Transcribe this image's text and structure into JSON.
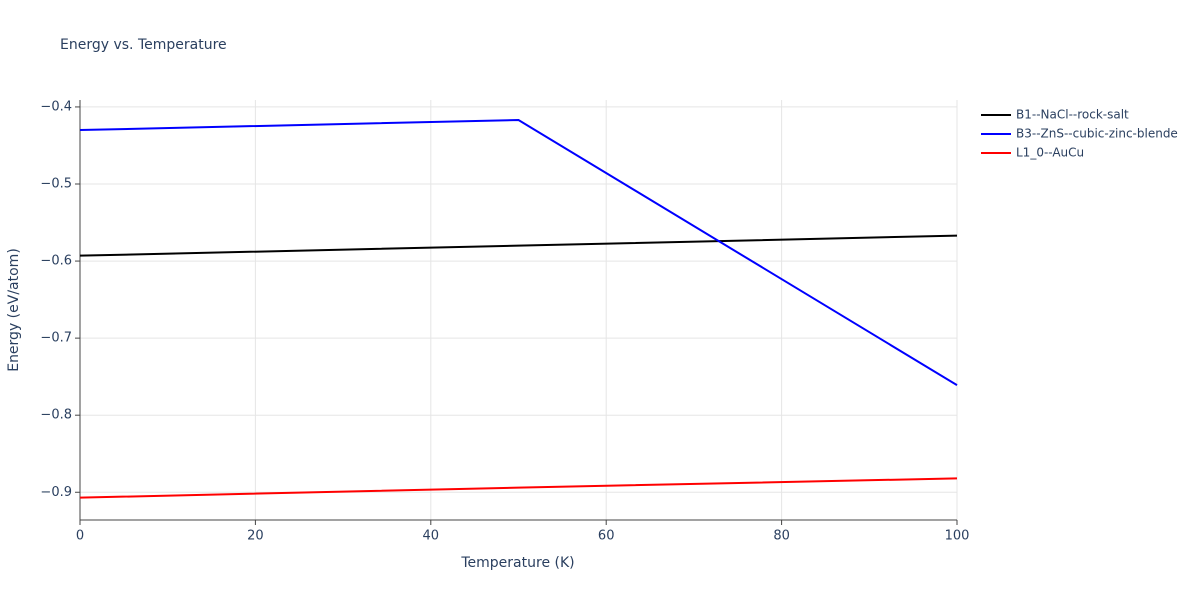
{
  "chart_data": {
    "type": "line",
    "title": "Energy vs. Temperature",
    "x_label": "Temperature (K)",
    "y_label": "Energy (eV/atom)",
    "x": [
      0,
      50,
      100
    ],
    "series": [
      {
        "name": "B1--NaCl--rock-salt",
        "color": "#000000",
        "values": [
          -0.593,
          -0.58,
          -0.567
        ]
      },
      {
        "name": "B3--ZnS--cubic-zinc-blende",
        "color": "#0000ff",
        "values": [
          -0.43,
          -0.417,
          -0.761
        ]
      },
      {
        "name": "L1_0--AuCu",
        "color": "#ff0000",
        "values": [
          -0.907,
          -0.894,
          -0.882
        ]
      }
    ],
    "xlim": [
      0,
      100
    ],
    "xticks": [
      0,
      20,
      40,
      60,
      80,
      100
    ],
    "ylim": [
      -0.936,
      -0.391
    ],
    "yticks": [
      {
        "value": -0.9,
        "label": "−0.9"
      },
      {
        "value": -0.8,
        "label": "−0.8"
      },
      {
        "value": -0.7,
        "label": "−0.7"
      },
      {
        "value": -0.6,
        "label": "−0.6"
      },
      {
        "value": -0.5,
        "label": "−0.5"
      },
      {
        "value": -0.4,
        "label": "−0.4"
      }
    ],
    "grid": true,
    "legend": "outside-right"
  }
}
